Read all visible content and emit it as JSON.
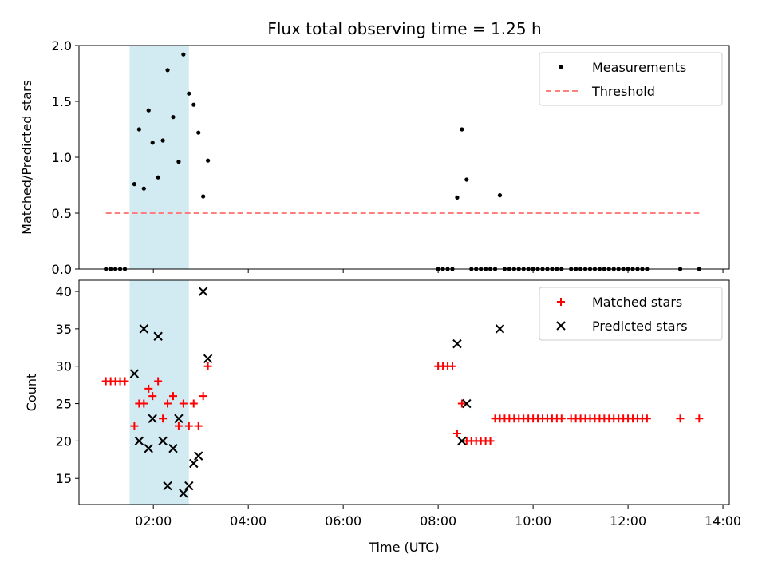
{
  "chart_data": [
    {
      "type": "scatter",
      "title": "Flux total observing time = 1.25 h",
      "xlabel": "",
      "ylabel": "Matched/Predicted stars",
      "ylim": [
        0,
        2.0
      ],
      "yticks": [
        "0.0",
        "0.5",
        "1.0",
        "1.5",
        "2.0"
      ],
      "shaded_interval": [
        "01:30",
        "02:45"
      ],
      "shade_color": "#add8e6",
      "legend": {
        "placement": "top-right",
        "entries": [
          "Measurements",
          "Threshold"
        ]
      },
      "threshold": {
        "name": "Threshold",
        "value": 0.5,
        "x_start": "01:00",
        "x_end": "13:30",
        "color": "#ff7f7f",
        "style": "dashed"
      },
      "series": [
        {
          "name": "Measurements",
          "color": "#000000",
          "marker": "dot",
          "points": [
            [
              "01:00",
              0
            ],
            [
              "01:06",
              0
            ],
            [
              "01:12",
              0
            ],
            [
              "01:18",
              0
            ],
            [
              "01:24",
              0
            ],
            [
              "01:36",
              0.76
            ],
            [
              "01:42",
              1.25
            ],
            [
              "01:48",
              0.72
            ],
            [
              "01:54",
              1.42
            ],
            [
              "01:59",
              1.13
            ],
            [
              "02:06",
              0.82
            ],
            [
              "02:12",
              1.15
            ],
            [
              "02:18",
              1.78
            ],
            [
              "02:25",
              1.36
            ],
            [
              "02:32",
              0.96
            ],
            [
              "02:38",
              1.92
            ],
            [
              "02:45",
              1.57
            ],
            [
              "02:51",
              1.47
            ],
            [
              "02:57",
              1.22
            ],
            [
              "03:03",
              0.65
            ],
            [
              "03:09",
              0.97
            ],
            [
              "08:00",
              0
            ],
            [
              "08:06",
              0
            ],
            [
              "08:12",
              0
            ],
            [
              "08:18",
              0
            ],
            [
              "08:24",
              0.64
            ],
            [
              "08:30",
              1.25
            ],
            [
              "08:36",
              0.8
            ],
            [
              "08:42",
              0
            ],
            [
              "08:48",
              0
            ],
            [
              "08:54",
              0
            ],
            [
              "09:00",
              0
            ],
            [
              "09:06",
              0
            ],
            [
              "09:12",
              0
            ],
            [
              "09:18",
              0.66
            ],
            [
              "09:24",
              0
            ],
            [
              "09:30",
              0
            ],
            [
              "09:36",
              0
            ],
            [
              "09:42",
              0
            ],
            [
              "09:48",
              0
            ],
            [
              "09:54",
              0
            ],
            [
              "10:00",
              0
            ],
            [
              "10:06",
              0
            ],
            [
              "10:12",
              0
            ],
            [
              "10:18",
              0
            ],
            [
              "10:24",
              0
            ],
            [
              "10:30",
              0
            ],
            [
              "10:36",
              0
            ],
            [
              "10:48",
              0
            ],
            [
              "10:54",
              0
            ],
            [
              "11:00",
              0
            ],
            [
              "11:06",
              0
            ],
            [
              "11:12",
              0
            ],
            [
              "11:18",
              0
            ],
            [
              "11:24",
              0
            ],
            [
              "11:30",
              0
            ],
            [
              "11:36",
              0
            ],
            [
              "11:42",
              0
            ],
            [
              "11:48",
              0
            ],
            [
              "11:54",
              0
            ],
            [
              "12:00",
              0
            ],
            [
              "12:06",
              0
            ],
            [
              "12:12",
              0
            ],
            [
              "12:18",
              0
            ],
            [
              "12:24",
              0
            ],
            [
              "13:06",
              0
            ],
            [
              "13:30",
              0
            ]
          ]
        }
      ]
    },
    {
      "type": "scatter",
      "title": "",
      "xlabel": "Time (UTC)",
      "ylabel": "Count",
      "ylim": [
        11.5,
        41.5
      ],
      "yticks": [
        "15",
        "20",
        "25",
        "30",
        "35",
        "40"
      ],
      "xlim": [
        "00:26",
        "14:08"
      ],
      "xticks": [
        "02:00",
        "04:00",
        "06:00",
        "08:00",
        "10:00",
        "12:00",
        "14:00"
      ],
      "shaded_interval": [
        "01:30",
        "02:45"
      ],
      "shade_color": "#add8e6",
      "legend": {
        "placement": "top-right",
        "entries": [
          "Matched stars",
          "Predicted stars"
        ]
      },
      "series": [
        {
          "name": "Matched stars",
          "color": "#ff0000",
          "marker": "plus",
          "points": [
            [
              "01:00",
              28
            ],
            [
              "01:06",
              28
            ],
            [
              "01:12",
              28
            ],
            [
              "01:18",
              28
            ],
            [
              "01:24",
              28
            ],
            [
              "01:36",
              22
            ],
            [
              "01:42",
              25
            ],
            [
              "01:48",
              25
            ],
            [
              "01:54",
              27
            ],
            [
              "01:59",
              26
            ],
            [
              "02:06",
              28
            ],
            [
              "02:12",
              23
            ],
            [
              "02:18",
              25
            ],
            [
              "02:25",
              26
            ],
            [
              "02:32",
              22
            ],
            [
              "02:38",
              25
            ],
            [
              "02:45",
              22
            ],
            [
              "02:51",
              25
            ],
            [
              "02:57",
              22
            ],
            [
              "03:03",
              26
            ],
            [
              "03:09",
              30
            ],
            [
              "08:00",
              30
            ],
            [
              "08:06",
              30
            ],
            [
              "08:12",
              30
            ],
            [
              "08:18",
              30
            ],
            [
              "08:24",
              21
            ],
            [
              "08:30",
              25
            ],
            [
              "08:36",
              20
            ],
            [
              "08:42",
              20
            ],
            [
              "08:48",
              20
            ],
            [
              "08:54",
              20
            ],
            [
              "09:00",
              20
            ],
            [
              "09:06",
              20
            ],
            [
              "09:12",
              23
            ],
            [
              "09:18",
              23
            ],
            [
              "09:24",
              23
            ],
            [
              "09:30",
              23
            ],
            [
              "09:36",
              23
            ],
            [
              "09:42",
              23
            ],
            [
              "09:48",
              23
            ],
            [
              "09:54",
              23
            ],
            [
              "10:00",
              23
            ],
            [
              "10:06",
              23
            ],
            [
              "10:12",
              23
            ],
            [
              "10:18",
              23
            ],
            [
              "10:24",
              23
            ],
            [
              "10:30",
              23
            ],
            [
              "10:36",
              23
            ],
            [
              "10:48",
              23
            ],
            [
              "10:54",
              23
            ],
            [
              "11:00",
              23
            ],
            [
              "11:06",
              23
            ],
            [
              "11:12",
              23
            ],
            [
              "11:18",
              23
            ],
            [
              "11:24",
              23
            ],
            [
              "11:30",
              23
            ],
            [
              "11:36",
              23
            ],
            [
              "11:42",
              23
            ],
            [
              "11:48",
              23
            ],
            [
              "11:54",
              23
            ],
            [
              "12:00",
              23
            ],
            [
              "12:06",
              23
            ],
            [
              "12:12",
              23
            ],
            [
              "12:18",
              23
            ],
            [
              "12:24",
              23
            ],
            [
              "13:06",
              23
            ],
            [
              "13:30",
              23
            ]
          ]
        },
        {
          "name": "Predicted stars",
          "color": "#000000",
          "marker": "x",
          "points": [
            [
              "01:36",
              29
            ],
            [
              "01:42",
              20
            ],
            [
              "01:48",
              35
            ],
            [
              "01:54",
              19
            ],
            [
              "01:59",
              23
            ],
            [
              "02:06",
              34
            ],
            [
              "02:12",
              20
            ],
            [
              "02:18",
              14
            ],
            [
              "02:25",
              19
            ],
            [
              "02:32",
              23
            ],
            [
              "02:38",
              13
            ],
            [
              "02:45",
              14
            ],
            [
              "02:51",
              17
            ],
            [
              "02:57",
              18
            ],
            [
              "03:03",
              40
            ],
            [
              "03:09",
              31
            ],
            [
              "08:24",
              33
            ],
            [
              "08:30",
              20
            ],
            [
              "08:36",
              25
            ],
            [
              "09:18",
              35
            ]
          ]
        }
      ]
    }
  ]
}
